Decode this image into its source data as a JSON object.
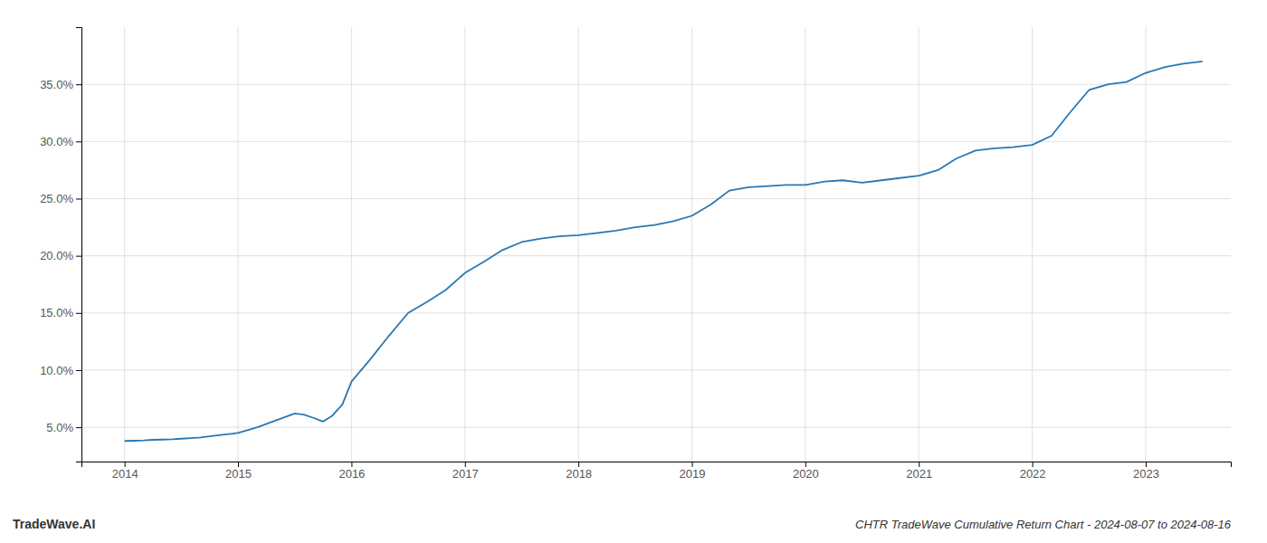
{
  "chart_data": {
    "type": "line",
    "title": "CHTR TradeWave Cumulative Return Chart - 2024-08-07 to 2024-08-16",
    "annotations": [
      "TradeWave.AI"
    ],
    "x": [
      2014.0,
      2014.08,
      2014.17,
      2014.25,
      2014.33,
      2014.42,
      2014.5,
      2014.58,
      2014.67,
      2014.75,
      2014.83,
      2014.92,
      2015.0,
      2015.17,
      2015.5,
      2015.58,
      2015.67,
      2015.75,
      2015.83,
      2015.92,
      2016.0,
      2016.17,
      2016.33,
      2016.5,
      2016.67,
      2016.83,
      2017.0,
      2017.17,
      2017.33,
      2017.5,
      2017.67,
      2017.83,
      2018.0,
      2018.17,
      2018.33,
      2018.5,
      2018.67,
      2018.83,
      2019.0,
      2019.17,
      2019.33,
      2019.5,
      2019.67,
      2019.83,
      2020.0,
      2020.17,
      2020.33,
      2020.5,
      2020.67,
      2020.83,
      2021.0,
      2021.17,
      2021.33,
      2021.5,
      2021.67,
      2021.83,
      2022.0,
      2022.17,
      2022.33,
      2022.5,
      2022.67,
      2022.83,
      2023.0,
      2023.17,
      2023.33,
      2023.5
    ],
    "values": [
      3.8,
      3.82,
      3.85,
      3.9,
      3.92,
      3.95,
      4.0,
      4.05,
      4.1,
      4.2,
      4.3,
      4.4,
      4.5,
      5.0,
      6.2,
      6.1,
      5.8,
      5.5,
      6.0,
      7.0,
      9.0,
      11.0,
      13.0,
      15.0,
      16.0,
      17.0,
      18.5,
      19.5,
      20.5,
      21.2,
      21.5,
      21.7,
      21.8,
      22.0,
      22.2,
      22.5,
      22.7,
      23.0,
      23.5,
      24.5,
      25.7,
      26.0,
      26.1,
      26.2,
      26.2,
      26.5,
      26.6,
      26.4,
      26.6,
      26.8,
      27.0,
      27.5,
      28.5,
      29.2,
      29.4,
      29.5,
      29.7,
      30.5,
      32.5,
      34.5,
      35.0,
      35.2,
      36.0,
      36.5,
      36.8,
      37.0
    ],
    "color": "#2878b5",
    "xlim": [
      2013.62,
      2023.75
    ],
    "ylim": [
      2.0,
      40.0
    ],
    "xticks": [
      2014,
      2015,
      2016,
      2017,
      2018,
      2019,
      2020,
      2021,
      2022,
      2023
    ],
    "yticks": [
      {
        "value": 5.0,
        "label": "5.0%"
      },
      {
        "value": 10.0,
        "label": "10.0%"
      },
      {
        "value": 15.0,
        "label": "15.0%"
      },
      {
        "value": 20.0,
        "label": "20.0%"
      },
      {
        "value": 25.0,
        "label": "25.0%"
      },
      {
        "value": 30.0,
        "label": "30.0%"
      },
      {
        "value": 35.0,
        "label": "35.0%"
      }
    ],
    "grid": true
  }
}
